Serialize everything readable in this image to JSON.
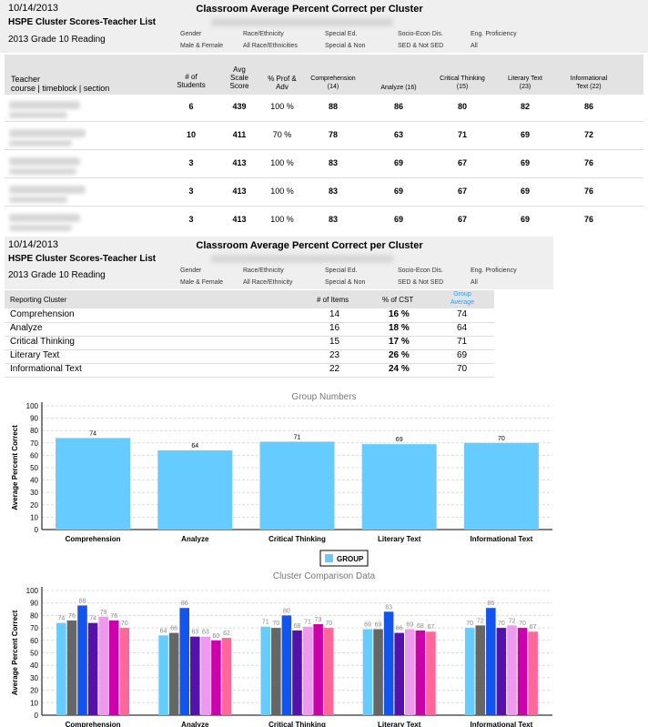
{
  "header1": {
    "date": "10/14/2013",
    "title": "Classroom Average Percent Correct per Cluster",
    "subtitle": "HSPE Cluster Scores-Teacher List",
    "grade": "2013 Grade 10 Reading",
    "filters": [
      {
        "label": "Gender",
        "value": "Male & Female"
      },
      {
        "label": "Race/Ethnicity",
        "value": "All Race/Ethnicities"
      },
      {
        "label": "Special Ed.",
        "value": "Special & Non"
      },
      {
        "label": "Socio-Econ Dis.",
        "value": "SED & Not SED"
      },
      {
        "label": "Eng. Proficiency",
        "value": "All"
      }
    ]
  },
  "teacher_table": {
    "headers": {
      "teacher": "Teacher",
      "teacher_sub": "course | timeblock | section",
      "students": [
        "# of",
        "Students"
      ],
      "scale": [
        "Avg",
        "Scale",
        "Score"
      ],
      "prof": [
        "% Prof &",
        "Adv"
      ],
      "comp": [
        "Comprehension",
        "(14)"
      ],
      "analyze": "Analyze (16)",
      "critical": [
        "Critical Thinking",
        "(15)"
      ],
      "literary": [
        "Literary Text",
        "(23)"
      ],
      "informational": [
        "Informational",
        "Text (22)"
      ]
    },
    "rows": [
      {
        "students": "6",
        "scale": "439",
        "prof": "100 %",
        "comp": "88",
        "analyze": "86",
        "critical": "80",
        "literary": "82",
        "informational": "86"
      },
      {
        "students": "10",
        "scale": "411",
        "prof": "70 %",
        "comp": "78",
        "analyze": "63",
        "critical": "71",
        "literary": "69",
        "informational": "72"
      },
      {
        "students": "3",
        "scale": "413",
        "prof": "100 %",
        "comp": "83",
        "analyze": "69",
        "critical": "67",
        "literary": "69",
        "informational": "76"
      },
      {
        "students": "3",
        "scale": "413",
        "prof": "100 %",
        "comp": "83",
        "analyze": "69",
        "critical": "67",
        "literary": "69",
        "informational": "76"
      },
      {
        "students": "3",
        "scale": "413",
        "prof": "100 %",
        "comp": "83",
        "analyze": "69",
        "critical": "67",
        "literary": "69",
        "informational": "76"
      }
    ]
  },
  "header2": {
    "date": "10/14/2013",
    "title": "Classroom Average Percent Correct per Cluster",
    "subtitle": "HSPE Cluster Scores-Teacher List",
    "grade": "2013 Grade 10 Reading",
    "filters": [
      {
        "label": "Gender",
        "value": "Male & Female"
      },
      {
        "label": "Race/Ethnicity",
        "value": "All Race/Ethnicity"
      },
      {
        "label": "Special Ed.",
        "value": "Special & Non"
      },
      {
        "label": "Socio-Econ Dis.",
        "value": "SED & Not SED"
      },
      {
        "label": "Eng. Proficiency",
        "value": "All"
      }
    ]
  },
  "cluster_table": {
    "headers": {
      "cluster": "Reporting Cluster",
      "items": "# of Items",
      "cst": "% of CST",
      "group": [
        "Group",
        "Average"
      ]
    },
    "rows": [
      {
        "name": "Comprehension",
        "items": "14",
        "cst": "16 %",
        "avg": "74"
      },
      {
        "name": "Analyze",
        "items": "16",
        "cst": "18 %",
        "avg": "64"
      },
      {
        "name": "Critical Thinking",
        "items": "15",
        "cst": "17 %",
        "avg": "71"
      },
      {
        "name": "Literary Text",
        "items": "23",
        "cst": "26 %",
        "avg": "69"
      },
      {
        "name": "Informational Text",
        "items": "22",
        "cst": "24 %",
        "avg": "70"
      }
    ]
  },
  "colors": {
    "group_bar": "#66ccff",
    "header_bg": "#efefef",
    "accent_blue": "#3399ff"
  },
  "chart_data": [
    {
      "type": "bar",
      "title": "Group Numbers",
      "ylabel": "Average Percent Correct",
      "xlabel": "",
      "ylim": [
        0,
        100
      ],
      "yticks": [
        "0",
        "10",
        "20",
        "30",
        "40",
        "50",
        "60",
        "70",
        "80",
        "90",
        "100"
      ],
      "categories": [
        "Comprehension",
        "Analyze",
        "Critical Thinking",
        "Literary Text",
        "Informational Text"
      ],
      "series": [
        {
          "name": "GROUP",
          "color": "#66ccff",
          "values": [
            74,
            64,
            71,
            69,
            70
          ]
        }
      ],
      "legend": "bottom-center",
      "grid": true
    },
    {
      "type": "bar",
      "title": "Cluster Comparison Data",
      "ylabel": "Average Percent Correct",
      "xlabel": "",
      "ylim": [
        0,
        100
      ],
      "yticks": [
        "0",
        "10",
        "20",
        "30",
        "40",
        "50",
        "60",
        "70",
        "80",
        "90",
        "100"
      ],
      "categories": [
        "Comprehension",
        "Analyze",
        "Critical Thinking",
        "Literary Text",
        "Informational Text"
      ],
      "series": [
        {
          "color": "#66ccff",
          "values": [
            74,
            64,
            71,
            69,
            70
          ]
        },
        {
          "color": "#666666",
          "values": [
            76,
            66,
            70,
            69,
            72
          ]
        },
        {
          "color": "#1155ee",
          "values": [
            88,
            86,
            80,
            83,
            86
          ]
        },
        {
          "color": "#5511aa",
          "values": [
            74,
            63,
            68,
            66,
            70
          ]
        },
        {
          "color": "#ee99ee",
          "values": [
            79,
            63,
            71,
            69,
            72
          ]
        },
        {
          "color": "#cc00aa",
          "values": [
            76,
            60,
            73,
            68,
            70
          ]
        },
        {
          "color": "#ff6699",
          "values": [
            70,
            62,
            70,
            67,
            67
          ]
        }
      ],
      "grid": true
    }
  ]
}
